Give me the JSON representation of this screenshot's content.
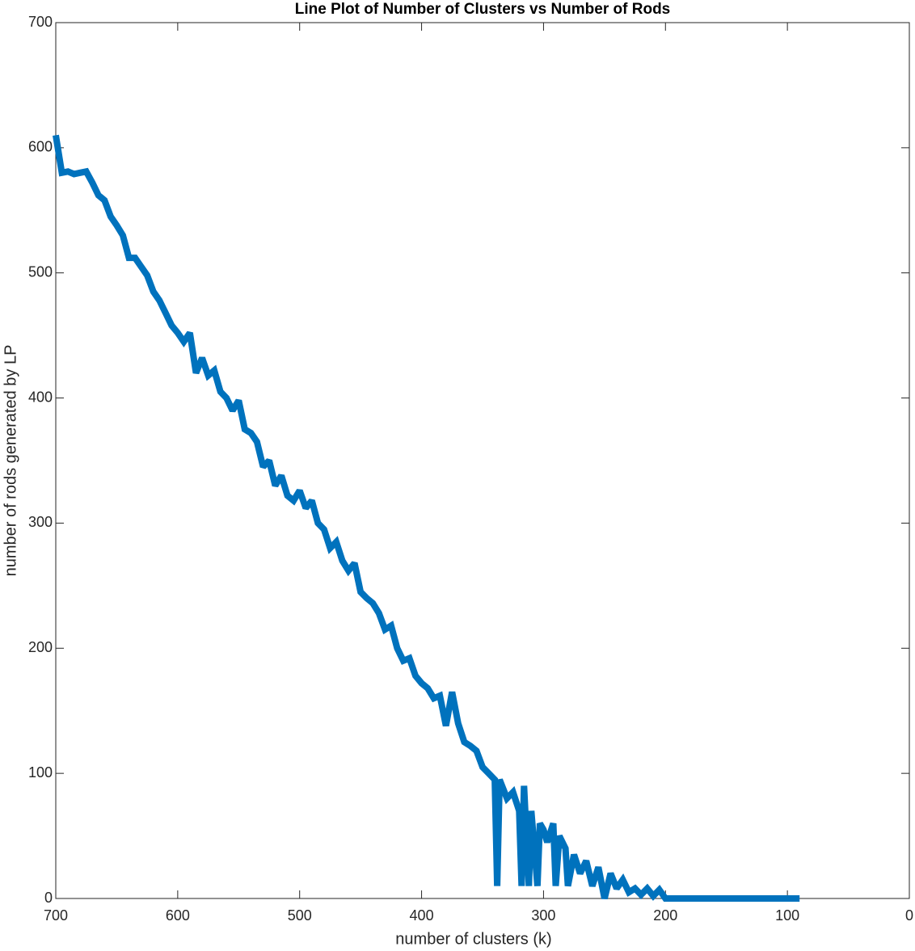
{
  "chart_data": {
    "type": "line",
    "title": "Line Plot of Number of Clusters vs Number of Rods",
    "x_label": "number of clusters (k)",
    "y_label": "number of rods generated by LP",
    "x_reverse": true,
    "xlim": [
      0,
      700
    ],
    "xticks": [
      0,
      100,
      200,
      300,
      400,
      500,
      600,
      700
    ],
    "ylim": [
      0,
      700
    ],
    "yticks": [
      0,
      100,
      200,
      300,
      400,
      500,
      600,
      700
    ],
    "series": [
      {
        "color": "#0072bd",
        "x": [
          700,
          695,
          690,
          685,
          680,
          675,
          670,
          665,
          660,
          655,
          650,
          645,
          640,
          635,
          630,
          625,
          620,
          615,
          610,
          605,
          600,
          595,
          590,
          585,
          580,
          575,
          570,
          565,
          560,
          555,
          550,
          545,
          540,
          535,
          530,
          525,
          520,
          515,
          510,
          505,
          500,
          495,
          490,
          485,
          480,
          475,
          470,
          465,
          460,
          455,
          450,
          445,
          440,
          435,
          430,
          425,
          420,
          415,
          410,
          405,
          400,
          395,
          390,
          385,
          380,
          375,
          370,
          365,
          360,
          355,
          350,
          345,
          340,
          338,
          336,
          330,
          325,
          320,
          318,
          316,
          312,
          310,
          305,
          303,
          300,
          297,
          292,
          290,
          287,
          282,
          280,
          275,
          270,
          265,
          260,
          255,
          250,
          245,
          240,
          235,
          230,
          225,
          220,
          215,
          210,
          205,
          200,
          150,
          90
        ],
        "values": [
          610,
          580,
          581,
          579,
          580,
          581,
          572,
          562,
          558,
          545,
          538,
          530,
          512,
          512,
          505,
          498,
          485,
          478,
          468,
          458,
          452,
          445,
          452,
          420,
          432,
          418,
          422,
          405,
          400,
          390,
          398,
          375,
          372,
          365,
          345,
          350,
          330,
          338,
          322,
          318,
          326,
          312,
          318,
          300,
          295,
          280,
          285,
          270,
          262,
          268,
          245,
          240,
          236,
          228,
          215,
          218,
          200,
          190,
          192,
          178,
          172,
          168,
          160,
          162,
          138,
          165,
          140,
          125,
          122,
          118,
          105,
          100,
          95,
          10,
          95,
          80,
          85,
          70,
          10,
          90,
          10,
          70,
          10,
          60,
          55,
          45,
          60,
          10,
          50,
          40,
          10,
          35,
          20,
          30,
          10,
          25,
          0,
          20,
          8,
          15,
          5,
          8,
          3,
          8,
          2,
          7,
          0,
          0,
          0
        ]
      }
    ]
  }
}
